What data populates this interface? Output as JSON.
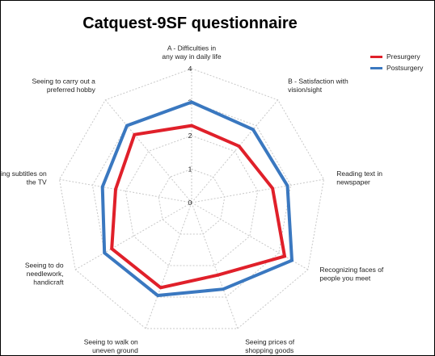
{
  "chart_data": {
    "type": "radar",
    "title": "Catquest-9SF questionnaire",
    "axes": [
      [
        "A - Difficulties in",
        "any way in daily life"
      ],
      [
        "B - Satisfaction with",
        "vision/sight"
      ],
      [
        "Reading text in",
        "newspaper"
      ],
      [
        "Recognizing faces of",
        "people you meet"
      ],
      [
        "Seeing prices of",
        "shopping goods"
      ],
      [
        "Seeing to walk on",
        "uneven ground"
      ],
      [
        "Seeing to do",
        "needlework,",
        "handicraft"
      ],
      [
        "Reading subtitles on",
        "the TV"
      ],
      [
        "Seeing to carry out a",
        "preferred hobby"
      ]
    ],
    "scale": {
      "min": 0,
      "max": 4,
      "ticks": [
        0,
        1,
        2,
        3,
        4
      ]
    },
    "grid": true,
    "legend_position": "top-right",
    "series": [
      {
        "name": "Presurgery",
        "color": "#e0202a",
        "values": [
          2.3,
          2.2,
          2.45,
          3.2,
          2.3,
          2.7,
          2.75,
          2.3,
          2.65
        ]
      },
      {
        "name": "Postsurgery",
        "color": "#3a78c0",
        "values": [
          3.0,
          2.85,
          2.9,
          3.45,
          2.75,
          2.95,
          3.0,
          2.7,
          3.0
        ]
      }
    ]
  }
}
